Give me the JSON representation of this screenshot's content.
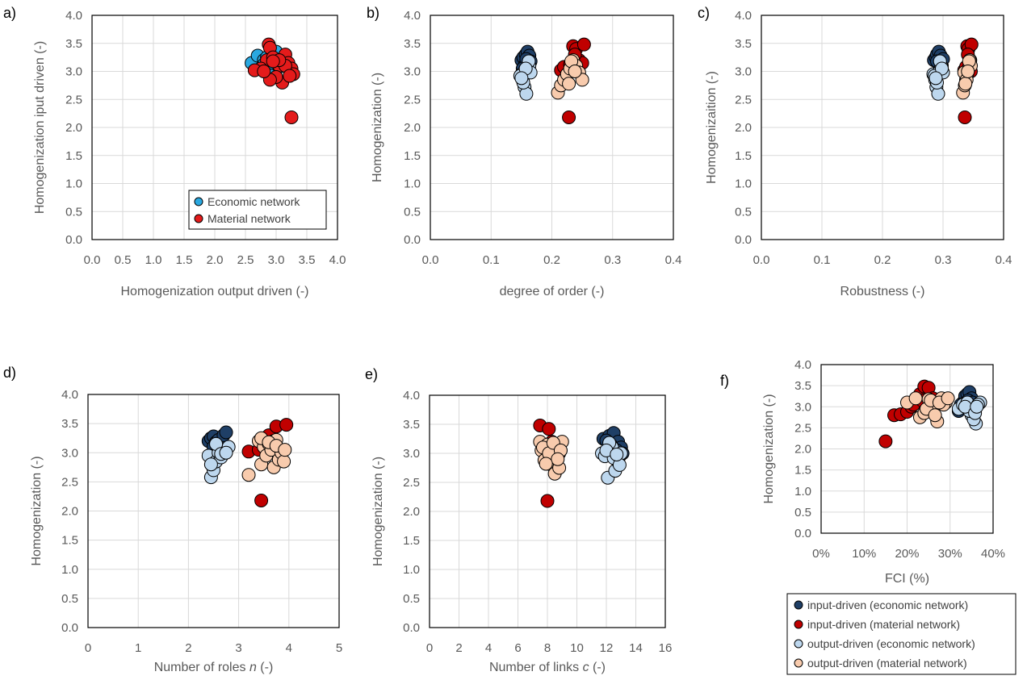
{
  "colors": {
    "econ_input": "#1f3f66",
    "mat_input": "#c00000",
    "econ_output": "#bdd7ee",
    "mat_output": "#f8cbad",
    "panel_a_econ": "#2aa8e0",
    "panel_a_mat": "#e41b1b",
    "grid": "#d9d9d9"
  },
  "legend_a": [
    "Economic network",
    "Material network"
  ],
  "legend_shared": [
    "input-driven (economic network)",
    "input-driven (material network)",
    "output-driven (economic network)",
    "output-driven (material network)"
  ],
  "chart_data": [
    {
      "panel": "a)",
      "type": "scatter",
      "xlabel": "Homogenization output driven (-)",
      "ylabel": "Homogenization iput driven (-)",
      "xlim": [
        0,
        4
      ],
      "ylim": [
        0,
        4
      ],
      "xticks": [
        "0.0",
        "0.5",
        "1.0",
        "1.5",
        "2.0",
        "2.5",
        "3.0",
        "3.5",
        "4.0"
      ],
      "yticks": [
        "0.0",
        "0.5",
        "1.0",
        "1.5",
        "2.0",
        "2.5",
        "3.0",
        "3.5",
        "4.0"
      ],
      "legend": "bottom-right",
      "series": [
        {
          "name": "Economic network",
          "color_key": "panel_a_econ",
          "x": [
            2.6,
            2.7,
            2.8,
            2.85,
            2.9,
            2.95,
            3.0,
            3.05,
            2.75,
            2.9,
            3.0,
            3.1,
            2.8,
            2.95,
            3.05
          ],
          "y": [
            3.15,
            3.28,
            3.2,
            3.25,
            3.1,
            3.3,
            3.25,
            3.18,
            3.05,
            3.0,
            3.35,
            3.22,
            3.12,
            3.15,
            3.08
          ]
        },
        {
          "name": "Material network",
          "color_key": "panel_a_mat",
          "x": [
            2.88,
            2.9,
            2.85,
            2.95,
            3.05,
            3.15,
            3.2,
            3.25,
            3.28,
            3.1,
            3.0,
            2.9,
            2.75,
            2.65,
            2.8,
            3.15,
            3.22,
            3.05,
            2.95,
            3.25
          ],
          "y": [
            3.48,
            3.42,
            3.2,
            3.25,
            3.1,
            3.3,
            3.15,
            3.05,
            2.95,
            2.8,
            2.9,
            2.85,
            3.05,
            3.02,
            3.0,
            3.1,
            2.92,
            3.2,
            3.18,
            2.18
          ]
        }
      ]
    },
    {
      "panel": "b)",
      "type": "scatter",
      "xlabel": "degree of order (-)",
      "ylabel": "Homogenization (-)",
      "xlim": [
        0,
        0.4
      ],
      "ylim": [
        0,
        4
      ],
      "xticks": [
        "0.0",
        "0.1",
        "0.2",
        "0.3",
        "0.4"
      ],
      "yticks": [
        "0.0",
        "0.5",
        "1.0",
        "1.5",
        "2.0",
        "2.5",
        "3.0",
        "3.5",
        "4.0"
      ],
      "series": [
        {
          "name": "input-driven (economic network)",
          "color_key": "econ_input",
          "x": [
            0.15,
            0.153,
            0.157,
            0.16,
            0.163,
            0.155,
            0.158,
            0.162,
            0.152,
            0.165
          ],
          "y": [
            3.2,
            3.25,
            3.3,
            3.35,
            3.28,
            3.1,
            3.22,
            3.15,
            3.05,
            3.18
          ]
        },
        {
          "name": "input-driven (material network)",
          "color_key": "mat_input",
          "x": [
            0.215,
            0.22,
            0.225,
            0.23,
            0.235,
            0.24,
            0.245,
            0.25,
            0.253,
            0.228,
            0.238,
            0.242
          ],
          "y": [
            3.02,
            3.08,
            2.95,
            3.12,
            3.45,
            3.4,
            3.2,
            3.15,
            3.48,
            2.18,
            3.3,
            3.0
          ]
        },
        {
          "name": "output-driven (economic network)",
          "color_key": "econ_output",
          "x": [
            0.15,
            0.152,
            0.155,
            0.158,
            0.16,
            0.163,
            0.165,
            0.148,
            0.153,
            0.162,
            0.157,
            0.15
          ],
          "y": [
            2.95,
            2.85,
            2.72,
            2.6,
            3.0,
            3.1,
            2.98,
            2.92,
            2.8,
            3.18,
            3.05,
            2.88
          ]
        },
        {
          "name": "output-driven (material network)",
          "color_key": "mat_output",
          "x": [
            0.21,
            0.215,
            0.22,
            0.225,
            0.23,
            0.235,
            0.24,
            0.245,
            0.25,
            0.232,
            0.228,
            0.238
          ],
          "y": [
            2.62,
            2.75,
            2.85,
            2.95,
            3.05,
            3.2,
            3.1,
            2.98,
            2.85,
            3.18,
            2.78,
            3.0
          ]
        }
      ]
    },
    {
      "panel": "c)",
      "type": "scatter",
      "xlabel": "Robustness (-)",
      "ylabel": "Homogenizaition (-)",
      "xlim": [
        0,
        0.4
      ],
      "ylim": [
        0,
        4
      ],
      "xticks": [
        "0.0",
        "0.1",
        "0.2",
        "0.3",
        "0.4"
      ],
      "yticks": [
        "0.0",
        "0.5",
        "1.0",
        "1.5",
        "2.0",
        "2.5",
        "3.0",
        "3.5",
        "4.0"
      ],
      "series": [
        {
          "name": "input-driven (economic network)",
          "color_key": "econ_input",
          "x": [
            0.285,
            0.288,
            0.29,
            0.293,
            0.296,
            0.298,
            0.3,
            0.292,
            0.295,
            0.29
          ],
          "y": [
            3.2,
            3.25,
            3.3,
            3.35,
            3.28,
            3.1,
            3.22,
            3.15,
            3.05,
            3.18
          ]
        },
        {
          "name": "input-driven (material network)",
          "color_key": "mat_input",
          "x": [
            0.335,
            0.338,
            0.34,
            0.342,
            0.345,
            0.347,
            0.344,
            0.336,
            0.341,
            0.346
          ],
          "y": [
            3.02,
            3.08,
            3.45,
            3.4,
            3.2,
            3.48,
            3.15,
            2.18,
            3.3,
            3.0
          ]
        },
        {
          "name": "output-driven (economic network)",
          "color_key": "econ_output",
          "x": [
            0.284,
            0.287,
            0.289,
            0.292,
            0.294,
            0.297,
            0.3,
            0.286,
            0.29,
            0.295,
            0.298,
            0.288
          ],
          "y": [
            2.95,
            2.85,
            2.72,
            2.6,
            3.0,
            3.1,
            2.98,
            2.92,
            2.8,
            3.18,
            3.05,
            2.88
          ]
        },
        {
          "name": "output-driven (material network)",
          "color_key": "mat_output",
          "x": [
            0.333,
            0.336,
            0.338,
            0.34,
            0.342,
            0.344,
            0.346,
            0.335,
            0.339,
            0.343,
            0.337,
            0.341
          ],
          "y": [
            2.62,
            2.75,
            2.85,
            2.95,
            3.05,
            3.2,
            3.1,
            2.98,
            2.85,
            3.18,
            2.78,
            3.0
          ]
        }
      ]
    },
    {
      "panel": "d)",
      "type": "scatter",
      "xlabel": "Number of roles",
      "xlabel_var": "n",
      "xlabel_unit": "(-)",
      "ylabel": "Homogenization (-)",
      "xlim": [
        0,
        5
      ],
      "ylim": [
        0,
        4
      ],
      "xticks": [
        "0",
        "1",
        "2",
        "3",
        "4",
        "5"
      ],
      "yticks": [
        "0.0",
        "0.5",
        "1.0",
        "1.5",
        "2.0",
        "2.5",
        "3.0",
        "3.5",
        "4.0"
      ],
      "series": [
        {
          "name": "input-driven (economic network)",
          "color_key": "econ_input",
          "x": [
            2.4,
            2.45,
            2.5,
            2.55,
            2.6,
            2.65,
            2.7,
            2.75,
            2.5,
            2.6
          ],
          "y": [
            3.2,
            3.25,
            3.28,
            3.18,
            3.22,
            3.15,
            3.3,
            3.35,
            3.1,
            3.05
          ]
        },
        {
          "name": "input-driven (material network)",
          "color_key": "mat_input",
          "x": [
            3.2,
            3.45,
            3.6,
            3.75,
            3.95,
            3.5,
            3.7,
            3.4,
            3.85,
            3.55
          ],
          "y": [
            3.02,
            2.18,
            3.3,
            3.45,
            3.48,
            3.1,
            3.2,
            3.05,
            3.0,
            3.15
          ]
        },
        {
          "name": "output-driven (economic network)",
          "color_key": "econ_output",
          "x": [
            2.4,
            2.45,
            2.5,
            2.55,
            2.6,
            2.65,
            2.7,
            2.8,
            2.45,
            2.55,
            2.65,
            2.75
          ],
          "y": [
            2.95,
            2.58,
            2.7,
            2.85,
            3.0,
            2.92,
            3.05,
            3.1,
            2.8,
            3.15,
            2.98,
            3.0
          ]
        },
        {
          "name": "output-driven (material network)",
          "color_key": "mat_output",
          "x": [
            3.2,
            3.4,
            3.45,
            3.5,
            3.55,
            3.6,
            3.65,
            3.7,
            3.75,
            3.8,
            3.85,
            3.9,
            3.45,
            3.6,
            3.75,
            3.92
          ],
          "y": [
            2.62,
            3.2,
            2.8,
            3.1,
            2.95,
            3.15,
            3.05,
            2.75,
            3.22,
            2.88,
            3.0,
            2.85,
            3.25,
            3.18,
            3.12,
            3.05
          ]
        }
      ]
    },
    {
      "panel": "e)",
      "type": "scatter",
      "xlabel": "Number of links",
      "xlabel_var": "c",
      "xlabel_unit": "(-)",
      "ylabel": "Homogenization (-)",
      "xlim": [
        0,
        16
      ],
      "ylim": [
        0,
        4
      ],
      "xticks": [
        "0",
        "2",
        "4",
        "6",
        "8",
        "10",
        "12",
        "14",
        "16"
      ],
      "yticks": [
        "0.0",
        "0.5",
        "1.0",
        "1.5",
        "2.0",
        "2.5",
        "3.0",
        "3.5",
        "4.0"
      ],
      "series": [
        {
          "name": "input-driven (economic network)",
          "color_key": "econ_input",
          "x": [
            11.8,
            12.2,
            12.5,
            12.8,
            13.0,
            12.3,
            12.7,
            13.1,
            12.0,
            12.9
          ],
          "y": [
            3.25,
            3.3,
            3.35,
            3.2,
            3.1,
            3.15,
            3.05,
            3.0,
            3.22,
            2.95
          ]
        },
        {
          "name": "input-driven (material network)",
          "color_key": "mat_input",
          "x": [
            7.5,
            8.1,
            8.3,
            8.6,
            8.8,
            8.0,
            8.4,
            8.9,
            8.2,
            8.5
          ],
          "y": [
            3.48,
            3.42,
            3.2,
            3.1,
            3.0,
            2.18,
            2.95,
            3.05,
            3.15,
            2.9
          ]
        },
        {
          "name": "output-driven (economic network)",
          "color_key": "econ_output",
          "x": [
            11.7,
            11.9,
            12.1,
            12.4,
            12.6,
            12.8,
            13.0,
            12.2,
            12.5,
            12.9,
            12.0,
            12.7
          ],
          "y": [
            3.0,
            2.95,
            2.58,
            3.1,
            2.7,
            2.85,
            3.0,
            3.18,
            2.92,
            2.8,
            3.05,
            2.98
          ]
        },
        {
          "name": "output-driven (material network)",
          "color_key": "mat_output",
          "x": [
            7.5,
            7.6,
            7.8,
            8.0,
            8.2,
            8.3,
            8.5,
            8.6,
            8.8,
            9.0,
            7.7,
            8.1,
            8.4,
            8.9,
            8.7,
            7.9
          ],
          "y": [
            3.2,
            3.05,
            2.88,
            3.15,
            2.95,
            2.8,
            2.65,
            3.1,
            2.75,
            3.2,
            3.1,
            3.0,
            3.18,
            3.05,
            2.9,
            2.82
          ]
        }
      ]
    },
    {
      "panel": "f)",
      "type": "scatter",
      "xlabel": "FCI (%)",
      "ylabel": "Homogenization (-)",
      "xlim": [
        0,
        40
      ],
      "ylim": [
        0,
        4
      ],
      "xticks": [
        "0%",
        "10%",
        "20%",
        "30%",
        "40%"
      ],
      "yticks": [
        "0.0",
        "0.5",
        "1.0",
        "1.5",
        "2.0",
        "2.5",
        "3.0",
        "3.5",
        "4.0"
      ],
      "legend": "below",
      "series": [
        {
          "name": "input-driven (economic network)",
          "color_key": "econ_input",
          "x": [
            32,
            33,
            33.5,
            34,
            34.5,
            35,
            33.8,
            34.2,
            32.5,
            35.2
          ],
          "y": [
            2.9,
            3.1,
            3.25,
            3.3,
            3.35,
            3.2,
            3.0,
            3.15,
            3.05,
            3.1
          ]
        },
        {
          "name": "input-driven (material network)",
          "color_key": "mat_input",
          "x": [
            15,
            17,
            18.5,
            20,
            21,
            22,
            23,
            24,
            25,
            26,
            21.5,
            23.5
          ],
          "y": [
            2.18,
            2.8,
            2.82,
            2.88,
            3.0,
            3.1,
            3.3,
            3.48,
            3.45,
            3.2,
            3.05,
            3.15
          ]
        },
        {
          "name": "output-driven (economic network)",
          "color_key": "econ_output",
          "x": [
            32,
            33,
            34,
            35,
            36,
            37,
            35.5,
            34.5,
            36.5,
            33.5,
            35.8,
            36.2
          ],
          "y": [
            2.95,
            3.05,
            3.1,
            2.8,
            2.6,
            3.1,
            2.7,
            2.9,
            3.05,
            3.0,
            2.85,
            3.0
          ]
        },
        {
          "name": "output-driven (material network)",
          "color_key": "mat_output",
          "x": [
            20,
            22,
            23,
            24,
            25,
            26,
            27,
            28,
            29,
            24.5,
            25.5,
            26.5,
            28.5,
            27.5,
            29.5
          ],
          "y": [
            3.1,
            3.2,
            2.75,
            2.85,
            3.18,
            3.0,
            2.65,
            3.2,
            3.1,
            2.95,
            3.15,
            2.8,
            3.05,
            3.1,
            3.2
          ]
        }
      ]
    }
  ]
}
